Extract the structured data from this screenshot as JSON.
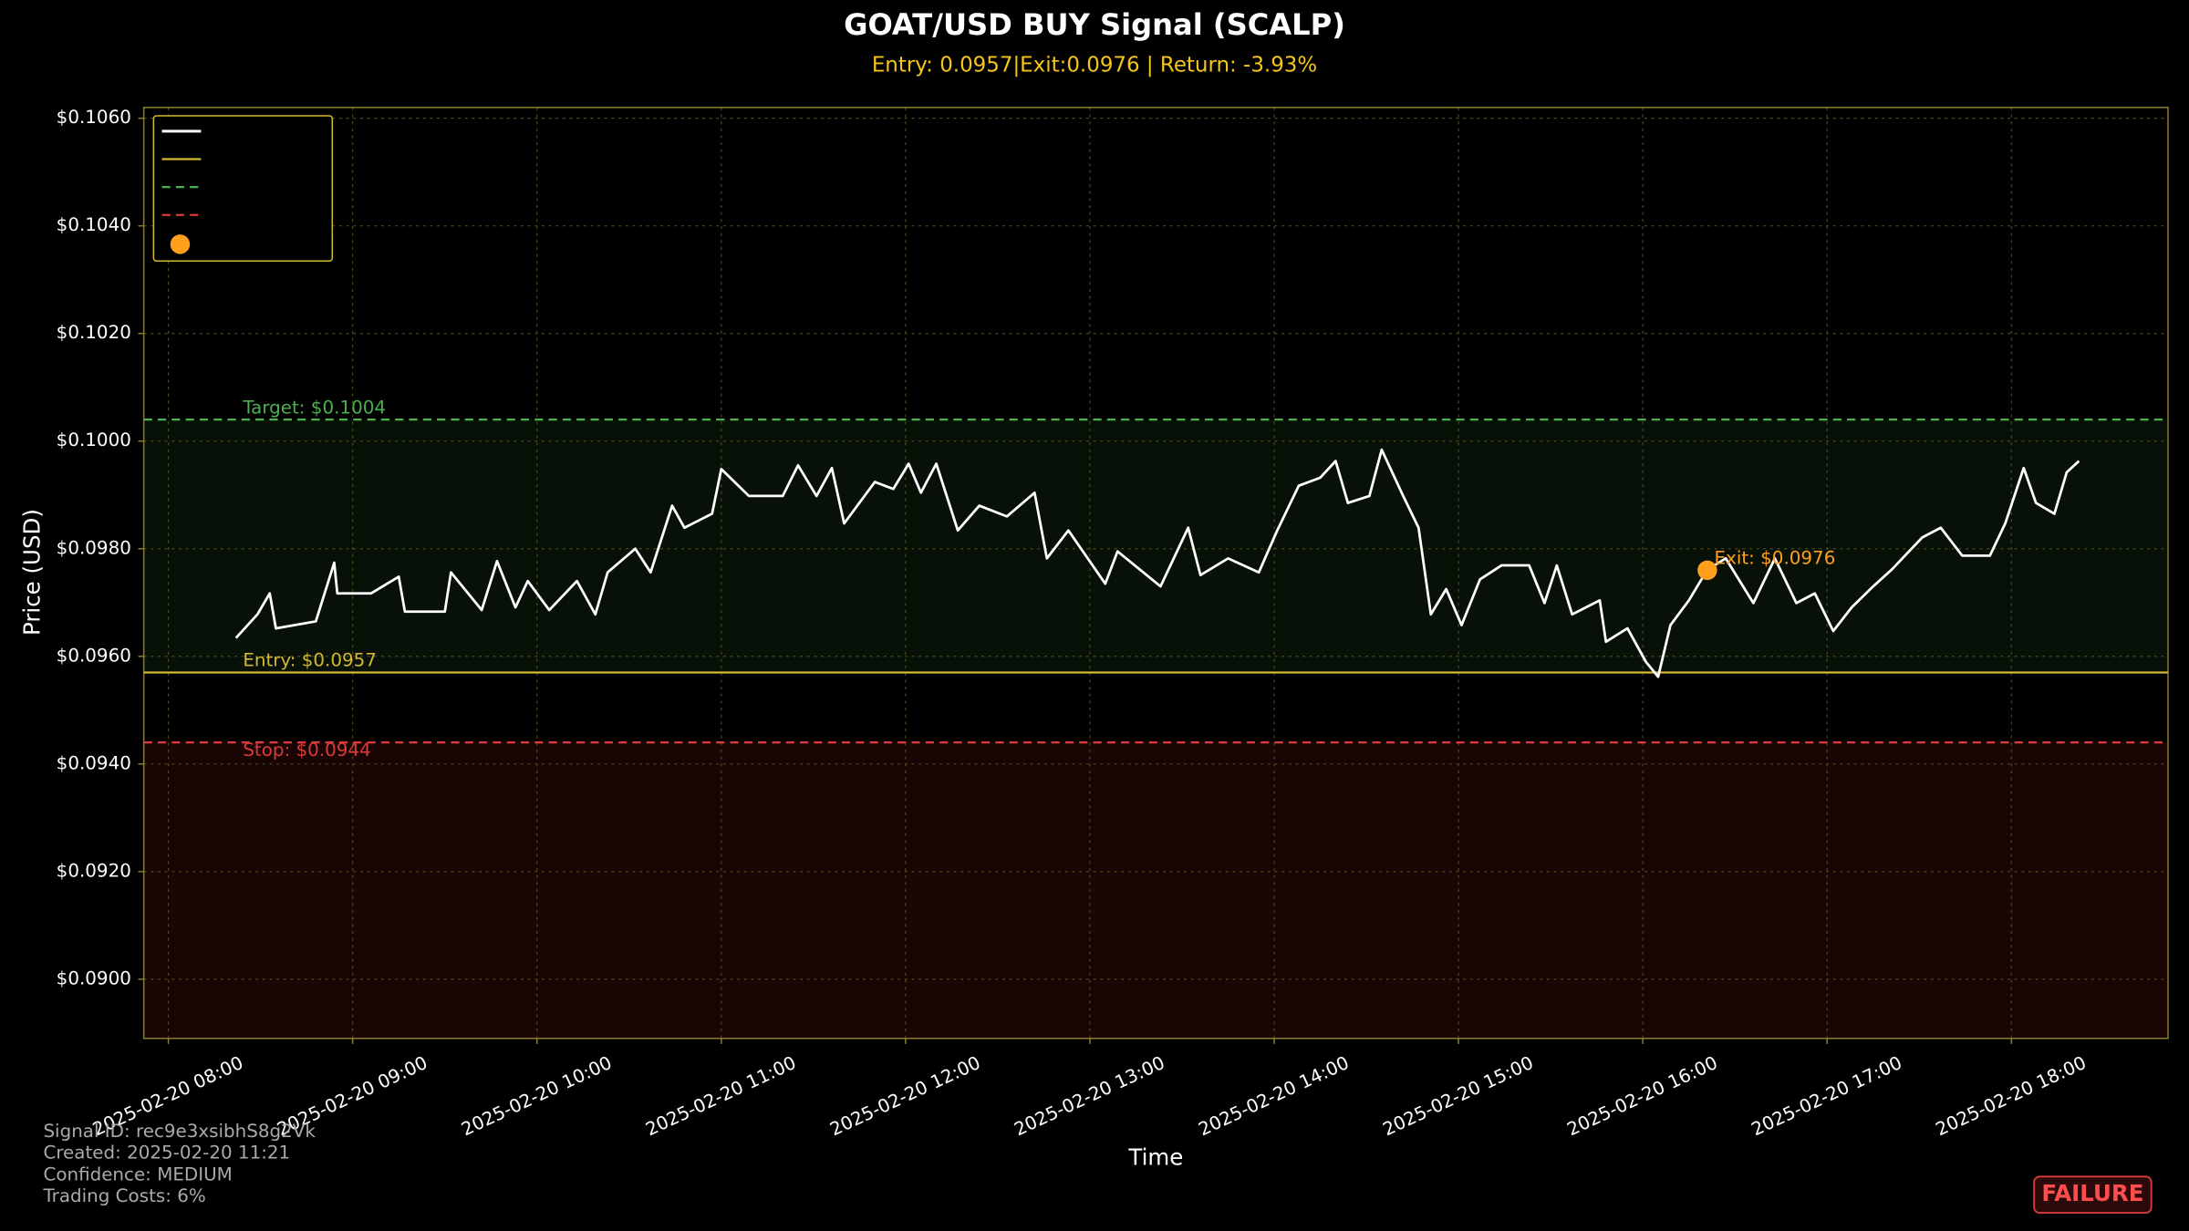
{
  "chart_data": {
    "type": "line",
    "title": "GOAT/USD BUY Signal (SCALP)",
    "subtitle": "Entry: 0.0957|Exit:0.0976 | Return: -3.93%",
    "x_label": "Time",
    "y_label": "Price (USD)",
    "color": "#ffffff",
    "grid": true,
    "legend": "upper left",
    "x": [
      "2025-02-20 08:22",
      "2025-02-20 08:29",
      "2025-02-20 08:33",
      "2025-02-20 08:35",
      "2025-02-20 08:48",
      "2025-02-20 08:54",
      "2025-02-20 08:55",
      "2025-02-20 09:06",
      "2025-02-20 09:15",
      "2025-02-20 09:17",
      "2025-02-20 09:30",
      "2025-02-20 09:32",
      "2025-02-20 09:42",
      "2025-02-20 09:47",
      "2025-02-20 09:53",
      "2025-02-20 09:57",
      "2025-02-20 10:04",
      "2025-02-20 10:13",
      "2025-02-20 10:19",
      "2025-02-20 10:23",
      "2025-02-20 10:32",
      "2025-02-20 10:37",
      "2025-02-20 10:44",
      "2025-02-20 10:48",
      "2025-02-20 10:57",
      "2025-02-20 11:00",
      "2025-02-20 11:09",
      "2025-02-20 11:20",
      "2025-02-20 11:25",
      "2025-02-20 11:31",
      "2025-02-20 11:36",
      "2025-02-20 11:40",
      "2025-02-20 11:50",
      "2025-02-20 11:56",
      "2025-02-20 12:01",
      "2025-02-20 12:05",
      "2025-02-20 12:10",
      "2025-02-20 12:17",
      "2025-02-20 12:24",
      "2025-02-20 12:33",
      "2025-02-20 12:42",
      "2025-02-20 12:46",
      "2025-02-20 12:53",
      "2025-02-20 13:05",
      "2025-02-20 13:09",
      "2025-02-20 13:23",
      "2025-02-20 13:32",
      "2025-02-20 13:36",
      "2025-02-20 13:45",
      "2025-02-20 13:55",
      "2025-02-20 14:01",
      "2025-02-20 14:08",
      "2025-02-20 14:15",
      "2025-02-20 14:20",
      "2025-02-20 14:24",
      "2025-02-20 14:31",
      "2025-02-20 14:35",
      "2025-02-20 14:42",
      "2025-02-20 14:47",
      "2025-02-20 14:51",
      "2025-02-20 14:56",
      "2025-02-20 15:01",
      "2025-02-20 15:07",
      "2025-02-20 15:14",
      "2025-02-20 15:23",
      "2025-02-20 15:28",
      "2025-02-20 15:32",
      "2025-02-20 15:37",
      "2025-02-20 15:46",
      "2025-02-20 15:48",
      "2025-02-20 15:55",
      "2025-02-20 16:01",
      "2025-02-20 16:05",
      "2025-02-20 16:09",
      "2025-02-20 16:15",
      "2025-02-20 16:21",
      "2025-02-20 16:27",
      "2025-02-20 16:36",
      "2025-02-20 16:43",
      "2025-02-20 16:50",
      "2025-02-20 16:56",
      "2025-02-20 17:02",
      "2025-02-20 17:08",
      "2025-02-20 17:15",
      "2025-02-20 17:21",
      "2025-02-20 17:31",
      "2025-02-20 17:37",
      "2025-02-20 17:44",
      "2025-02-20 17:53",
      "2025-02-20 17:58",
      "2025-02-20 18:04",
      "2025-02-20 18:08",
      "2025-02-20 18:14",
      "2025-02-20 18:18",
      "2025-02-20 18:22"
    ],
    "values": [
      0.09634,
      0.09678,
      0.09717,
      0.09652,
      0.09665,
      0.09774,
      0.09717,
      0.09717,
      0.09748,
      0.09683,
      0.09683,
      0.09756,
      0.09686,
      0.09777,
      0.09691,
      0.0974,
      0.09686,
      0.0974,
      0.09678,
      0.09756,
      0.098,
      0.09756,
      0.0988,
      0.09839,
      0.09865,
      0.09948,
      0.09898,
      0.09898,
      0.09955,
      0.09898,
      0.0995,
      0.09847,
      0.09924,
      0.09911,
      0.09958,
      0.09904,
      0.09958,
      0.09834,
      0.0988,
      0.0986,
      0.09904,
      0.09782,
      0.09834,
      0.09735,
      0.09795,
      0.0973,
      0.09839,
      0.09751,
      0.09782,
      0.09756,
      0.09834,
      0.09917,
      0.09932,
      0.09963,
      0.09885,
      0.09898,
      0.09984,
      0.09898,
      0.09839,
      0.09678,
      0.09725,
      0.09658,
      0.09743,
      0.09769,
      0.09769,
      0.09699,
      0.09769,
      0.09678,
      0.09704,
      0.09627,
      0.09652,
      0.0959,
      0.09562,
      0.09658,
      0.09704,
      0.09761,
      0.09782,
      0.09699,
      0.09782,
      0.09699,
      0.09717,
      0.09647,
      0.09691,
      0.0973,
      0.09761,
      0.09821,
      0.09839,
      0.09787,
      0.09787,
      0.09847,
      0.0995,
      0.09885,
      0.09865,
      0.09942,
      0.09963
    ],
    "xlim": [
      "2025-02-20 07:52",
      "2025-02-20 18:51"
    ],
    "xticks": [
      "2025-02-20 08:00",
      "2025-02-20 09:00",
      "2025-02-20 10:00",
      "2025-02-20 11:00",
      "2025-02-20 12:00",
      "2025-02-20 13:00",
      "2025-02-20 14:00",
      "2025-02-20 15:00",
      "2025-02-20 16:00",
      "2025-02-20 17:00",
      "2025-02-20 18:00"
    ],
    "ylim": [
      0.0889,
      0.1062
    ],
    "yticks": [
      {
        "value": 0.09,
        "label": "$0.0900"
      },
      {
        "value": 0.092,
        "label": "$0.0920"
      },
      {
        "value": 0.094,
        "label": "$0.0940"
      },
      {
        "value": 0.096,
        "label": "$0.0960"
      },
      {
        "value": 0.098,
        "label": "$0.0980"
      },
      {
        "value": 0.1,
        "label": "$0.1000"
      },
      {
        "value": 0.102,
        "label": "$0.1020"
      },
      {
        "value": 0.104,
        "label": "$0.1040"
      },
      {
        "value": 0.106,
        "label": "$0.1060"
      }
    ],
    "levels": [
      {
        "label": "Entry: $0.0957",
        "value": 0.0957,
        "color": "#d4b833",
        "dashed": false
      },
      {
        "label": "Target: $0.1004",
        "value": 0.1004,
        "color": "#4caf50",
        "dashed": true
      },
      {
        "label": "Stop: $0.0944",
        "value": 0.0944,
        "color": "#d83a3a",
        "dashed": true
      }
    ],
    "exit": {
      "x": "2025-02-20 16:21",
      "y": 0.0976,
      "label": "Exit: $0.0976",
      "color": "#ff9f1c"
    },
    "footer": [
      "Signal ID: rec9e3xsibhS8g2Vk",
      "Created: 2025-02-20 11:21",
      "Confidence: MEDIUM",
      "Trading Costs: 6%"
    ],
    "status": "FAILURE"
  }
}
